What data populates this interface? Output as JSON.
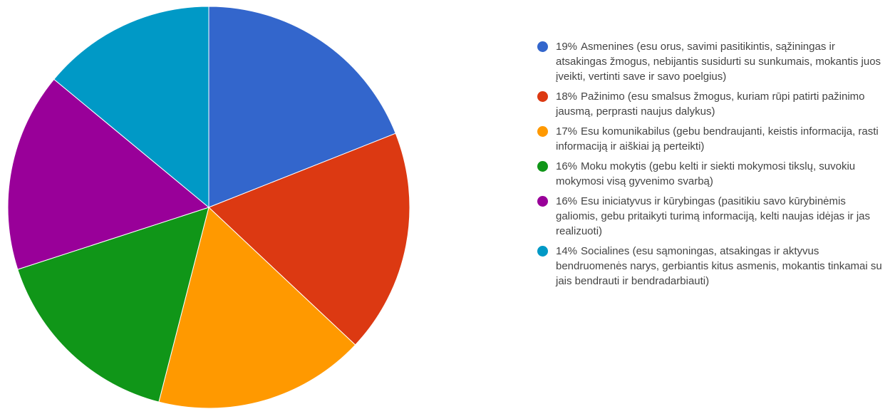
{
  "chart_data": {
    "type": "pie",
    "categories": [
      "Asmenines (esu orus, savimi pasitikintis, sąžiningas ir atsakingas žmogus, nebijantis susidurti su sunkumais, mokantis juos įveikti, vertinti save ir savo poelgius)",
      "Pažinimo (esu smalsus žmogus, kuriam rūpi patirti pažinimo jausmą, perprasti naujus dalykus)",
      "Esu komunikabilus (gebu bendraujanti, keistis informacija, rasti informaciją ir aiškiai ją perteikti)",
      "Moku mokytis (gebu kelti ir siekti mokymosi tikslų, suvokiu mokymosi visą gyvenimo svarbą)",
      "Esu iniciatyvus ir kūrybingas (pasitikiu savo kūrybinėmis galiomis, gebu pritaikyti turimą informaciją, kelti naujas idėjas ir jas realizuoti)",
      "Socialines (esu sąmoningas, atsakingas ir aktyvus bendruomenės narys, gerbiantis kitus asmenis, mokantis tinkamai su jais bendrauti ir bendradarbiauti)"
    ],
    "values": [
      19,
      18,
      17,
      16,
      16,
      14
    ],
    "value_labels": [
      "19%",
      "18%",
      "17%",
      "16%",
      "16%",
      "14%"
    ],
    "colors": [
      "#3366cc",
      "#dc3912",
      "#ff9900",
      "#109618",
      "#990099",
      "#0099c6"
    ]
  }
}
